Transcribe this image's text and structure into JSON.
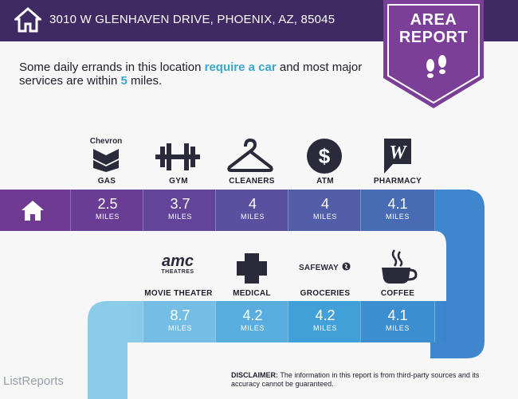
{
  "header": {
    "address": "3010 W GLENHAVEN DRIVE, PHOENIX, AZ, 85045",
    "home_icon": "house-icon"
  },
  "badge": {
    "line1": "AREA",
    "line2": "REPORT",
    "icon": "footprints-icon"
  },
  "intro": {
    "text_start": "Some daily errands in this location ",
    "highlight1": "require a car",
    "text_mid": " and most major services are within ",
    "highlight2": "5",
    "text_end": " miles."
  },
  "row1": [
    {
      "label": "GAS",
      "distance": "2.5",
      "unit": "MILES",
      "icon": "chevron-logo-icon",
      "logo_text": "Chevron"
    },
    {
      "label": "GYM",
      "distance": "3.7",
      "unit": "MILES",
      "icon": "dumbbell-icon"
    },
    {
      "label": "CLEANERS",
      "distance": "4",
      "unit": "MILES",
      "icon": "hanger-icon"
    },
    {
      "label": "ATM",
      "distance": "4",
      "unit": "MILES",
      "icon": "dollar-icon"
    },
    {
      "label": "PHARMACY",
      "distance": "4.1",
      "unit": "MILES",
      "icon": "walgreens-icon"
    }
  ],
  "row2": [
    {
      "label": "MOVIE THEATER",
      "distance": "8.7",
      "unit": "MILES",
      "icon": "amc-logo-icon",
      "logo_text": "amc",
      "logo_sub": "THEATRES"
    },
    {
      "label": "MEDICAL",
      "distance": "4.2",
      "unit": "MILES",
      "icon": "medical-cross-icon"
    },
    {
      "label": "GROCERIES",
      "distance": "4.2",
      "unit": "MILES",
      "icon": "safeway-logo-icon",
      "logo_text": "SAFEWAY"
    },
    {
      "label": "COFFEE",
      "distance": "4.1",
      "unit": "MILES",
      "icon": "coffee-cup-icon"
    }
  ],
  "disclaimer": {
    "bold": "DISCLAIMER:",
    "text": " The information in this report is from third-party sources and its accuracy cannot be guaranteed."
  },
  "brand": "ListReports",
  "colors": {
    "header": "#3f2a63",
    "badge": "#7b3f98",
    "row1_start": "#6f3b92",
    "row1_end": "#3e83c6",
    "row2": "#3e9bd6",
    "accent": "#3aa8c9"
  }
}
